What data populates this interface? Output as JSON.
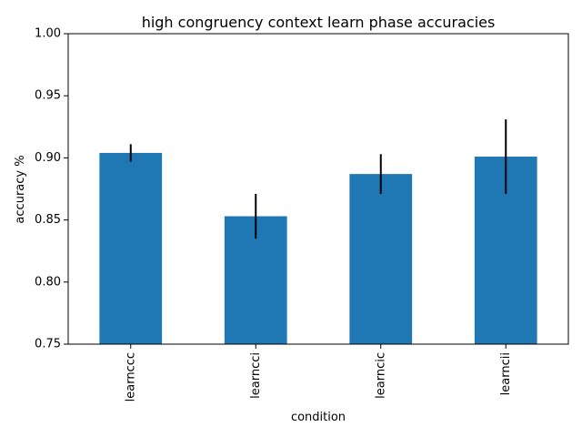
{
  "chart_data": {
    "type": "bar",
    "title": "high congruency context learn phase accuracies",
    "xlabel": "condition",
    "ylabel": "accuracy %",
    "categories": [
      "learnccc",
      "learncci",
      "learncic",
      "learncii"
    ],
    "values": [
      0.904,
      0.853,
      0.887,
      0.901
    ],
    "errors": [
      0.007,
      0.018,
      0.016,
      0.03
    ],
    "ylim": [
      0.75,
      1.0
    ],
    "yticks": [
      "0.75",
      "0.80",
      "0.85",
      "0.90",
      "0.95",
      "1.00"
    ],
    "bar_color": "#1f77b4",
    "error_color": "#000000",
    "grid": false,
    "legend": "none"
  }
}
